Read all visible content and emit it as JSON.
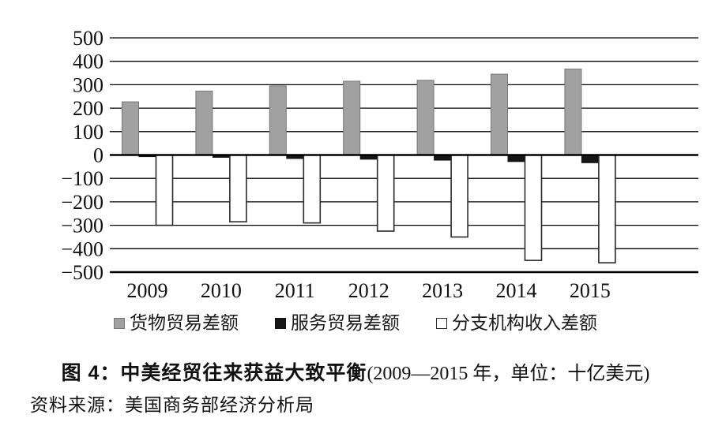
{
  "chart_data": {
    "type": "bar",
    "title_bold": "图 4：中美经贸往来获益大致平衡",
    "title_paren": "(2009—2015 年，单位：十亿美元)",
    "unit": "十亿美元",
    "source": "资料来源：美国商务部经济分析局",
    "categories": [
      "2009",
      "2010",
      "2011",
      "2012",
      "2013",
      "2014",
      "2015"
    ],
    "series": [
      {
        "name": "货物贸易差额",
        "color": "#a1a1a1",
        "border": "#787878",
        "values": [
          227,
          273,
          295,
          315,
          319,
          345,
          367
        ]
      },
      {
        "name": "服务贸易差额",
        "color": "#151515",
        "border": "#151515",
        "values": [
          -7,
          -10,
          -15,
          -18,
          -22,
          -28,
          -33
        ]
      },
      {
        "name": "分支机构收入差额",
        "color": "#ffffff",
        "border": "#2a2a2a",
        "values": [
          -300,
          -285,
          -290,
          -325,
          -350,
          -450,
          -460
        ]
      }
    ],
    "ylim": [
      -500,
      500
    ],
    "ytick_step": 100,
    "grid": true,
    "legend_position": "bottom",
    "axis_color": "#000000"
  }
}
